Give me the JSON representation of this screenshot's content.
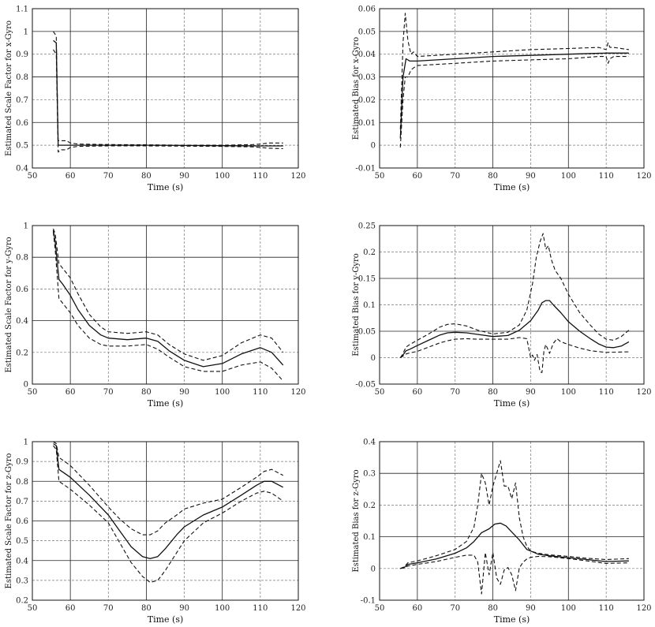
{
  "chart_data": [
    {
      "type": "line",
      "xlabel": "Time (s)",
      "ylabel": "Estimated Scale Factor for x-Gyro",
      "xlim": [
        50,
        120
      ],
      "ylim": [
        0.4,
        1.1
      ],
      "xticks": [
        50,
        60,
        70,
        80,
        90,
        100,
        110,
        120
      ],
      "yticks": [
        0.4,
        0.5,
        0.6,
        0.7,
        0.8,
        0.9,
        1,
        1.1
      ],
      "ytick_labels": [
        "0.4",
        "0.5",
        "0.6",
        "0.7",
        "0.8",
        "0.9",
        "1",
        "1.1"
      ],
      "grid": true,
      "series": [
        {
          "style": "solid",
          "x": [
            55.5,
            56.3,
            56.8,
            57.5,
            60,
            65,
            70,
            80,
            90,
            100,
            110,
            116
          ],
          "y": [
            0.96,
            0.95,
            0.5,
            0.5,
            0.5,
            0.5,
            0.5,
            0.5,
            0.499,
            0.498,
            0.497,
            0.497
          ]
        },
        {
          "style": "dashed",
          "x": [
            55.5,
            56.3,
            56.8,
            57.5,
            59,
            60,
            62,
            70,
            80,
            90,
            100,
            108,
            110,
            112,
            116
          ],
          "y": [
            1.0,
            0.98,
            0.52,
            0.52,
            0.52,
            0.51,
            0.505,
            0.503,
            0.502,
            0.5,
            0.5,
            0.503,
            0.505,
            0.51,
            0.51
          ]
        },
        {
          "style": "dashed",
          "x": [
            55.5,
            56.3,
            56.8,
            57.5,
            59,
            60,
            62,
            70,
            80,
            90,
            100,
            108,
            110,
            112,
            116
          ],
          "y": [
            0.92,
            0.9,
            0.47,
            0.48,
            0.48,
            0.49,
            0.495,
            0.497,
            0.497,
            0.496,
            0.495,
            0.493,
            0.49,
            0.487,
            0.485
          ]
        }
      ]
    },
    {
      "type": "line",
      "xlabel": "Time (s)",
      "ylabel": "Estimated Bias for x-Gyro",
      "xlim": [
        50,
        120
      ],
      "ylim": [
        -0.01,
        0.06
      ],
      "xticks": [
        50,
        60,
        70,
        80,
        90,
        100,
        110,
        120
      ],
      "yticks": [
        -0.01,
        0,
        0.01,
        0.02,
        0.03,
        0.04,
        0.05,
        0.06
      ],
      "ytick_labels": [
        "-0.01",
        "0",
        "0.01",
        "0.02",
        "0.03",
        "0.04",
        "0.05",
        "0.06"
      ],
      "grid": true,
      "series": [
        {
          "style": "solid",
          "x": [
            55.5,
            56.2,
            57,
            58,
            60,
            70,
            80,
            90,
            100,
            110,
            116
          ],
          "y": [
            0.003,
            0.03,
            0.038,
            0.037,
            0.037,
            0.038,
            0.039,
            0.0395,
            0.04,
            0.0405,
            0.0405
          ]
        },
        {
          "style": "dashed",
          "x": [
            55.5,
            56.2,
            56.8,
            57.5,
            58.3,
            59,
            60,
            70,
            80,
            90,
            100,
            108,
            110,
            110.5,
            111,
            112,
            116
          ],
          "y": [
            0.007,
            0.045,
            0.058,
            0.046,
            0.04,
            0.041,
            0.039,
            0.04,
            0.041,
            0.042,
            0.0425,
            0.043,
            0.042,
            0.045,
            0.043,
            0.043,
            0.042
          ]
        },
        {
          "style": "dashed",
          "x": [
            55.5,
            56.2,
            56.8,
            57.5,
            58.3,
            59,
            60,
            70,
            80,
            90,
            100,
            108,
            110,
            110.5,
            111,
            112,
            116
          ],
          "y": [
            -0.001,
            0.02,
            0.03,
            0.03,
            0.033,
            0.034,
            0.035,
            0.036,
            0.037,
            0.0375,
            0.038,
            0.039,
            0.039,
            0.036,
            0.038,
            0.039,
            0.039
          ]
        }
      ]
    },
    {
      "type": "line",
      "xlabel": "Time (s)",
      "ylabel": "Estimated Scale Factor for y-Gyro",
      "xlim": [
        50,
        120
      ],
      "ylim": [
        0,
        1
      ],
      "xticks": [
        50,
        60,
        70,
        80,
        90,
        100,
        110,
        120
      ],
      "yticks": [
        0,
        0.2,
        0.4,
        0.6,
        0.8,
        1
      ],
      "ytick_labels": [
        "0",
        "0.2",
        "0.4",
        "0.6",
        "0.8",
        "1"
      ],
      "grid": true,
      "series": [
        {
          "style": "solid",
          "x": [
            55.5,
            56,
            57,
            58,
            60,
            62,
            65,
            68,
            70,
            75,
            80,
            83,
            86,
            90,
            95,
            100,
            105,
            110,
            113,
            116
          ],
          "y": [
            0.97,
            0.9,
            0.66,
            0.63,
            0.56,
            0.47,
            0.37,
            0.31,
            0.29,
            0.28,
            0.29,
            0.27,
            0.21,
            0.15,
            0.11,
            0.13,
            0.19,
            0.23,
            0.2,
            0.12
          ]
        },
        {
          "style": "dashed",
          "x": [
            55.5,
            56,
            57,
            58,
            60,
            62,
            65,
            68,
            70,
            75,
            80,
            83,
            86,
            90,
            95,
            100,
            105,
            110,
            113,
            116
          ],
          "y": [
            0.98,
            0.95,
            0.76,
            0.73,
            0.67,
            0.57,
            0.44,
            0.36,
            0.33,
            0.32,
            0.33,
            0.31,
            0.25,
            0.19,
            0.15,
            0.18,
            0.26,
            0.31,
            0.29,
            0.2
          ]
        },
        {
          "style": "dashed",
          "x": [
            55.5,
            56,
            57,
            58,
            60,
            62,
            65,
            68,
            70,
            75,
            80,
            83,
            86,
            90,
            95,
            100,
            105,
            110,
            113,
            116
          ],
          "y": [
            0.96,
            0.85,
            0.54,
            0.51,
            0.45,
            0.37,
            0.29,
            0.25,
            0.24,
            0.24,
            0.25,
            0.22,
            0.17,
            0.11,
            0.08,
            0.08,
            0.12,
            0.14,
            0.1,
            0.02
          ]
        }
      ]
    },
    {
      "type": "line",
      "xlabel": "Time (s)",
      "ylabel": "Estimated Bias for y-Gyro",
      "xlim": [
        50,
        120
      ],
      "ylim": [
        -0.05,
        0.25
      ],
      "xticks": [
        50,
        60,
        70,
        80,
        90,
        100,
        110,
        120
      ],
      "yticks": [
        -0.05,
        0,
        0.05,
        0.1,
        0.15,
        0.2,
        0.25
      ],
      "ytick_labels": [
        "-0.05",
        "0",
        "0.05",
        "0.1",
        "0.15",
        "0.2",
        "0.25"
      ],
      "grid": true,
      "series": [
        {
          "style": "solid",
          "x": [
            55.5,
            56,
            57,
            58,
            60,
            63,
            66,
            68,
            70,
            73,
            76,
            80,
            84,
            87,
            90,
            92,
            93,
            94,
            95,
            96,
            98,
            100,
            103,
            106,
            108,
            110,
            112,
            114,
            116
          ],
          "y": [
            0,
            0.003,
            0.013,
            0.016,
            0.023,
            0.033,
            0.043,
            0.047,
            0.048,
            0.047,
            0.044,
            0.04,
            0.042,
            0.052,
            0.07,
            0.09,
            0.104,
            0.108,
            0.108,
            0.1,
            0.085,
            0.068,
            0.05,
            0.035,
            0.026,
            0.02,
            0.019,
            0.022,
            0.03
          ]
        },
        {
          "style": "dashed",
          "x": [
            55.5,
            56,
            57,
            58,
            60,
            63,
            66,
            68,
            70,
            73,
            76,
            80,
            84,
            87,
            89,
            90.5,
            91.5,
            92.5,
            93.3,
            94,
            94.7,
            95.5,
            96.5,
            98,
            100,
            103,
            106,
            108,
            110,
            112,
            114,
            116
          ],
          "y": [
            0,
            0.005,
            0.02,
            0.025,
            0.033,
            0.045,
            0.058,
            0.063,
            0.064,
            0.06,
            0.052,
            0.045,
            0.048,
            0.062,
            0.09,
            0.14,
            0.19,
            0.22,
            0.235,
            0.205,
            0.212,
            0.185,
            0.165,
            0.15,
            0.12,
            0.085,
            0.06,
            0.045,
            0.035,
            0.033,
            0.04,
            0.052
          ]
        },
        {
          "style": "dashed",
          "x": [
            55.5,
            56,
            57,
            58,
            60,
            63,
            66,
            68,
            70,
            73,
            76,
            80,
            84,
            87,
            89,
            90,
            90.5,
            91,
            91.7,
            92.5,
            93,
            93.5,
            94,
            95,
            96,
            97,
            98,
            100,
            103,
            106,
            110,
            116
          ],
          "y": [
            0,
            0.002,
            0.007,
            0.009,
            0.012,
            0.02,
            0.028,
            0.032,
            0.035,
            0.036,
            0.035,
            0.035,
            0.035,
            0.038,
            0.036,
            0.0,
            0.005,
            -0.005,
            0.006,
            -0.027,
            -0.028,
            0.012,
            0.025,
            0.008,
            0.027,
            0.036,
            0.03,
            0.025,
            0.018,
            0.013,
            0.01,
            0.011
          ]
        }
      ]
    },
    {
      "type": "line",
      "xlabel": "Time (s)",
      "ylabel": "Estimated Scale Factor for z-Gyro",
      "xlim": [
        50,
        120
      ],
      "ylim": [
        0.2,
        1
      ],
      "xticks": [
        50,
        60,
        70,
        80,
        90,
        100,
        110,
        120
      ],
      "yticks": [
        0.2,
        0.3,
        0.4,
        0.5,
        0.6,
        0.7,
        0.8,
        0.9,
        1
      ],
      "ytick_labels": [
        "0.2",
        "0.3",
        "0.4",
        "0.5",
        "0.6",
        "0.7",
        "0.8",
        "0.9",
        "1"
      ],
      "grid": true,
      "series": [
        {
          "style": "solid",
          "x": [
            55.5,
            56.3,
            57,
            60,
            65,
            70,
            73,
            76,
            79,
            81,
            83,
            85,
            88,
            90,
            95,
            100,
            105,
            109,
            111,
            113,
            116
          ],
          "y": [
            0.99,
            0.98,
            0.86,
            0.82,
            0.73,
            0.63,
            0.55,
            0.47,
            0.42,
            0.41,
            0.42,
            0.46,
            0.53,
            0.57,
            0.63,
            0.67,
            0.73,
            0.78,
            0.8,
            0.8,
            0.77
          ]
        },
        {
          "style": "dashed",
          "x": [
            55.5,
            56.3,
            57,
            60,
            65,
            70,
            73,
            76,
            79,
            81,
            83,
            85,
            88,
            90,
            95,
            100,
            105,
            109,
            111,
            113,
            116
          ],
          "y": [
            1.0,
            0.99,
            0.92,
            0.88,
            0.78,
            0.67,
            0.61,
            0.56,
            0.53,
            0.53,
            0.55,
            0.59,
            0.63,
            0.66,
            0.69,
            0.71,
            0.77,
            0.82,
            0.85,
            0.86,
            0.83
          ]
        },
        {
          "style": "dashed",
          "x": [
            55.5,
            56.3,
            57,
            60,
            65,
            70,
            73,
            76,
            79,
            81,
            83,
            85,
            88,
            90,
            95,
            100,
            105,
            109,
            111,
            113,
            116
          ],
          "y": [
            0.98,
            0.96,
            0.8,
            0.76,
            0.68,
            0.59,
            0.49,
            0.39,
            0.32,
            0.29,
            0.3,
            0.35,
            0.44,
            0.5,
            0.59,
            0.64,
            0.7,
            0.74,
            0.75,
            0.74,
            0.7
          ]
        }
      ]
    },
    {
      "type": "line",
      "xlabel": "Time (s)",
      "ylabel": "Estimated Bias for z-Gyro",
      "xlim": [
        50,
        120
      ],
      "ylim": [
        -0.1,
        0.4
      ],
      "xticks": [
        50,
        60,
        70,
        80,
        90,
        100,
        110,
        120
      ],
      "yticks": [
        -0.1,
        0,
        0.1,
        0.2,
        0.3,
        0.4
      ],
      "ytick_labels": [
        "-0.1",
        "0",
        "0.1",
        "0.2",
        "0.3",
        "0.4"
      ],
      "grid": true,
      "series": [
        {
          "style": "solid",
          "x": [
            55.5,
            56.5,
            57.5,
            60,
            65,
            70,
            73,
            75,
            77,
            79,
            80.5,
            82,
            83.5,
            85,
            87,
            89,
            92,
            95,
            100,
            105,
            110,
            116
          ],
          "y": [
            0,
            0.003,
            0.013,
            0.018,
            0.03,
            0.048,
            0.065,
            0.085,
            0.113,
            0.125,
            0.14,
            0.143,
            0.134,
            0.115,
            0.09,
            0.06,
            0.045,
            0.04,
            0.034,
            0.028,
            0.022,
            0.024
          ]
        },
        {
          "style": "dashed",
          "x": [
            55.5,
            56.5,
            57.5,
            60,
            65,
            70,
            73,
            75,
            76,
            77,
            78,
            79,
            80,
            81,
            82,
            83,
            84,
            85,
            86,
            87,
            88,
            89,
            90,
            92,
            95,
            100,
            105,
            110,
            116
          ],
          "y": [
            0,
            0.005,
            0.018,
            0.024,
            0.04,
            0.06,
            0.085,
            0.13,
            0.2,
            0.3,
            0.27,
            0.2,
            0.26,
            0.3,
            0.34,
            0.26,
            0.26,
            0.22,
            0.27,
            0.16,
            0.1,
            0.07,
            0.055,
            0.048,
            0.043,
            0.038,
            0.032,
            0.028,
            0.031
          ]
        },
        {
          "style": "dashed",
          "x": [
            55.5,
            56.5,
            57.5,
            60,
            65,
            70,
            73,
            75,
            76,
            77,
            78,
            79,
            80,
            81,
            82,
            83,
            84,
            85,
            86,
            87,
            88,
            89,
            90,
            92,
            95,
            100,
            105,
            110,
            116
          ],
          "y": [
            0,
            0.002,
            0.008,
            0.013,
            0.022,
            0.035,
            0.042,
            0.042,
            0.02,
            -0.08,
            0.05,
            -0.02,
            0.05,
            -0.03,
            -0.05,
            -0.005,
            0.003,
            -0.02,
            -0.07,
            0.002,
            0.02,
            0.03,
            0.035,
            0.038,
            0.037,
            0.031,
            0.024,
            0.016,
            0.018
          ]
        }
      ]
    }
  ]
}
